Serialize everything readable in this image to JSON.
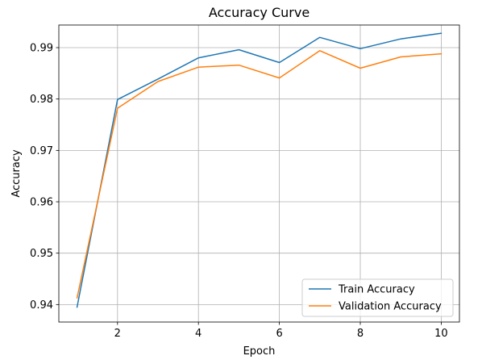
{
  "chart_data": {
    "type": "line",
    "title": "Accuracy Curve",
    "xlabel": "Epoch",
    "ylabel": "Accuracy",
    "x": [
      1,
      2,
      3,
      4,
      5,
      6,
      7,
      8,
      9,
      10
    ],
    "xlim": [
      0.55,
      10.45
    ],
    "ylim": [
      0.9366,
      0.9944
    ],
    "xticks": [
      2,
      4,
      6,
      8,
      10
    ],
    "yticks": [
      0.94,
      0.95,
      0.96,
      0.97,
      0.98,
      0.99
    ],
    "grid": true,
    "legend_position": "lower right",
    "series": [
      {
        "name": "Train Accuracy",
        "color": "#1f77b4",
        "values": [
          0.9395,
          0.9799,
          0.9839,
          0.988,
          0.9896,
          0.9871,
          0.992,
          0.9898,
          0.9917,
          0.9928
        ]
      },
      {
        "name": "Validation Accuracy",
        "color": "#ff7f0e",
        "values": [
          0.9413,
          0.9782,
          0.9834,
          0.9862,
          0.9866,
          0.9841,
          0.9894,
          0.986,
          0.9882,
          0.9888
        ]
      }
    ]
  }
}
